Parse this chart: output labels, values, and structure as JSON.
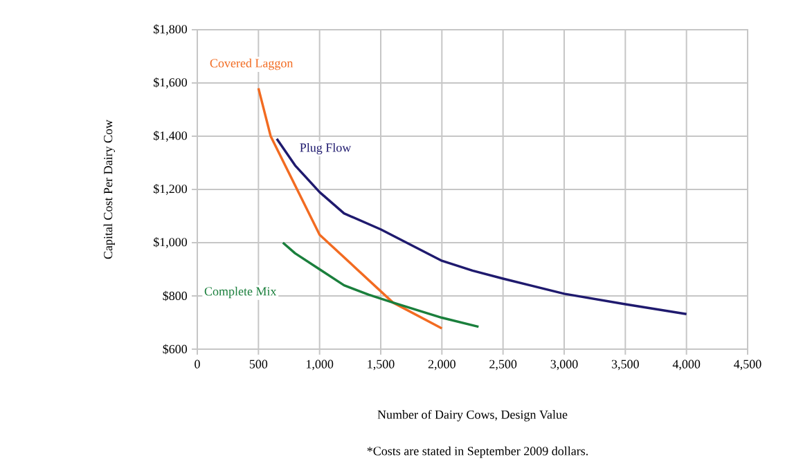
{
  "chart_data": {
    "type": "line",
    "xlabel": "Number of Dairy Cows, Design Value",
    "ylabel": "Capital Cost Per Dairy Cow",
    "annotations": [
      "*Costs are stated in September 2009 dollars."
    ],
    "series": [
      {
        "name": "Covered Laggon",
        "color": "#f26b21",
        "x": [
          500,
          600,
          1000,
          1600,
          2000
        ],
        "values": [
          1580,
          1400,
          1030,
          775,
          678
        ]
      },
      {
        "name": "Plug Flow",
        "color": "#1f1a6e",
        "x": [
          650,
          800,
          1000,
          1200,
          1500,
          2000,
          2250,
          2500,
          3000,
          3500,
          4000
        ],
        "values": [
          1390,
          1290,
          1190,
          1110,
          1050,
          932,
          895,
          865,
          808,
          769,
          732
        ]
      },
      {
        "name": "Complete Mix",
        "color": "#1a7f3c",
        "x": [
          700,
          800,
          1000,
          1200,
          1400,
          1600,
          2000,
          2300
        ],
        "values": [
          1000,
          960,
          900,
          840,
          805,
          775,
          718,
          684
        ]
      }
    ],
    "xlim": [
      0,
      4500
    ],
    "ylim": [
      600,
      1800
    ],
    "xticks": [
      0,
      500,
      {
        "value": 1000,
        "label": "1,000"
      },
      {
        "value": 1500,
        "label": "1,500"
      },
      {
        "value": 2000,
        "label": "2,000"
      },
      {
        "value": 2500,
        "label": "2,500"
      },
      {
        "value": 3000,
        "label": "3,000"
      },
      {
        "value": 3500,
        "label": "3,500"
      },
      {
        "value": 4000,
        "label": "4,000"
      },
      {
        "value": 4500,
        "label": "4,500"
      }
    ],
    "yticks": [
      {
        "value": 600,
        "label": "$600"
      },
      {
        "value": 800,
        "label": "$800"
      },
      {
        "value": 1000,
        "label": "$1,000"
      },
      {
        "value": 1200,
        "label": "$1,200"
      },
      {
        "value": 1400,
        "label": "$1,400"
      },
      {
        "value": 1600,
        "label": "$1,600"
      },
      {
        "value": 1800,
        "label": "$1,800"
      }
    ],
    "grid": true,
    "marker": "none",
    "line_style": "solid"
  }
}
